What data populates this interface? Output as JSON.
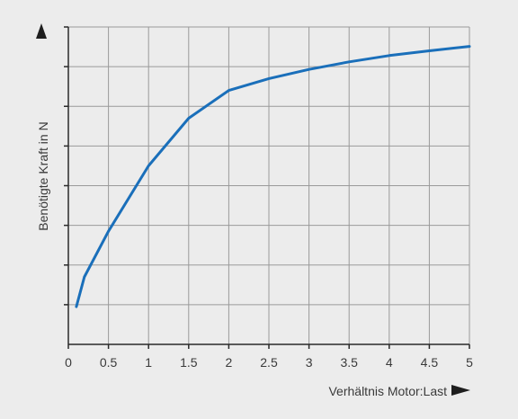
{
  "chart_data": {
    "type": "line",
    "xlabel": "Verhältnis Motor:Last",
    "ylabel": "Benötigte Kraft in N",
    "xlim": [
      0,
      5
    ],
    "x_ticks": [
      "0",
      "0.5",
      "1",
      "1.5",
      "2",
      "2.5",
      "3",
      "3.5",
      "4",
      "4.5",
      "5"
    ],
    "y_gridlines": 8,
    "grid": true,
    "line_color": "#1a6fba",
    "series": [
      {
        "x": [
          0.1,
          0.2,
          0.5,
          1.0,
          1.5,
          2.0,
          2.5,
          3.0,
          3.5,
          4.0,
          4.5,
          5.0
        ],
        "y": [
          0.95,
          1.7,
          2.85,
          4.5,
          5.7,
          6.4,
          6.7,
          6.93,
          7.12,
          7.28,
          7.4,
          7.51
        ]
      }
    ]
  }
}
